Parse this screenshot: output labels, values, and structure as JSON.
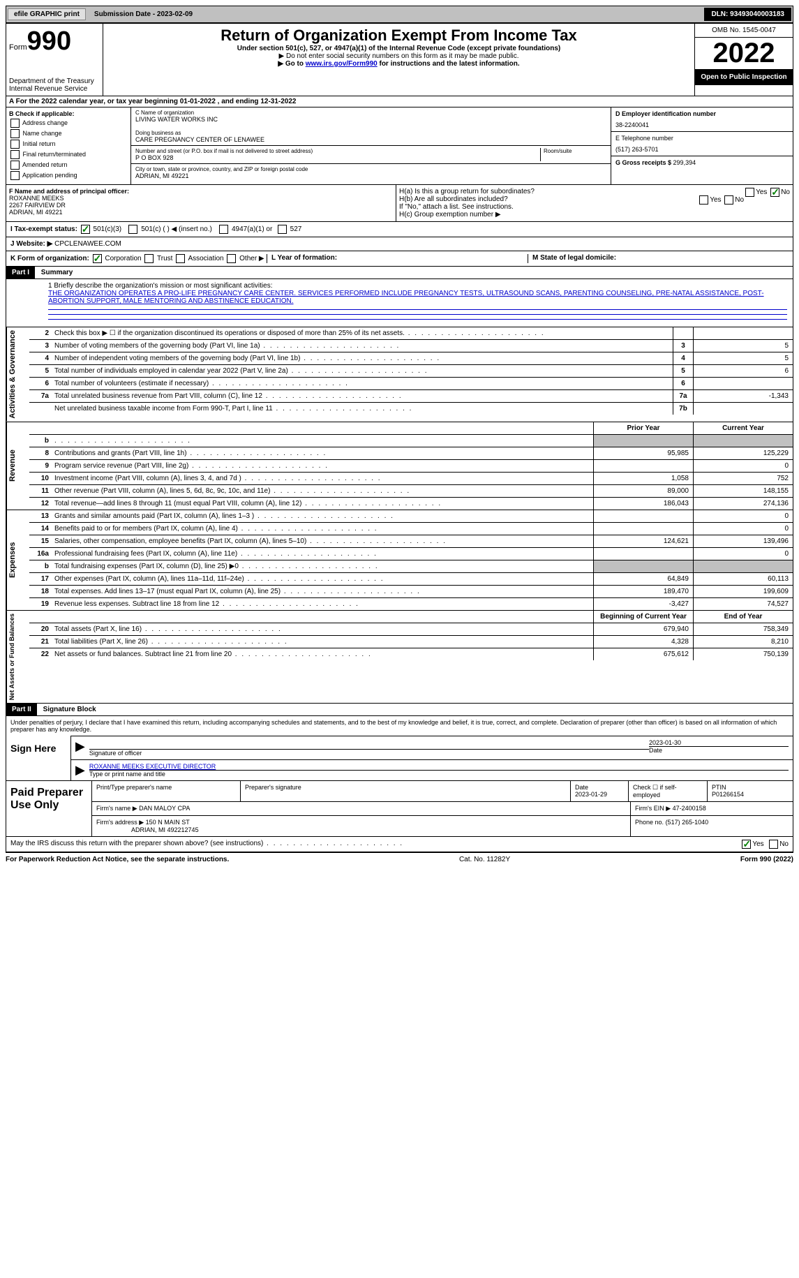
{
  "topbar": {
    "efile": "efile GRAPHIC print",
    "subdate_label": "Submission Date - ",
    "subdate": "2023-02-09",
    "dln": "DLN: 93493040003183"
  },
  "header": {
    "form_prefix": "Form",
    "form_num": "990",
    "dept": "Department of the Treasury",
    "irs": "Internal Revenue Service",
    "title": "Return of Organization Exempt From Income Tax",
    "subtitle": "Under section 501(c), 527, or 4947(a)(1) of the Internal Revenue Code (except private foundations)",
    "note1": "▶ Do not enter social security numbers on this form as it may be made public.",
    "note2_pre": "▶ Go to ",
    "note2_link": "www.irs.gov/Form990",
    "note2_post": " for instructions and the latest information.",
    "omb": "OMB No. 1545-0047",
    "year": "2022",
    "inspect": "Open to Public Inspection"
  },
  "sectionA": "A For the 2022 calendar year, or tax year beginning 01-01-2022    , and ending 12-31-2022",
  "colB": {
    "title": "B Check if applicable:",
    "items": [
      "Address change",
      "Name change",
      "Initial return",
      "Final return/terminated",
      "Amended return",
      "Application pending"
    ]
  },
  "colC": {
    "name_label": "C Name of organization",
    "name": "LIVING WATER WORKS INC",
    "dba_label": "Doing business as",
    "dba": "CARE PREGNANCY CENTER OF LENAWEE",
    "addr_label": "Number and street (or P.O. box if mail is not delivered to street address)",
    "room_label": "Room/suite",
    "addr": "P O BOX 928",
    "city_label": "City or town, state or province, country, and ZIP or foreign postal code",
    "city": "ADRIAN, MI  49221"
  },
  "colD": {
    "ein_label": "D Employer identification number",
    "ein": "38-2240041",
    "phone_label": "E Telephone number",
    "phone": "(517) 263-5701",
    "gross_label": "G Gross receipts $ ",
    "gross": "299,394"
  },
  "secF": {
    "label": "F Name and address of principal officer:",
    "name": "ROXANNE MEEKS",
    "addr1": "2267 FAIRVIEW DR",
    "addr2": "ADRIAN, MI  49221"
  },
  "secH": {
    "ha": "H(a) Is this a group return for subordinates?",
    "hb": "H(b) Are all subordinates included?",
    "hb_note": "If \"No,\" attach a list. See instructions.",
    "hc": "H(c) Group exemption number ▶",
    "yes": "Yes",
    "no": "No"
  },
  "taxStatus": {
    "label": "I    Tax-exempt status:",
    "opts": [
      "501(c)(3)",
      "501(c) (   ) ◀ (insert no.)",
      "4947(a)(1) or",
      "527"
    ]
  },
  "website": {
    "label": "J   Website: ▶",
    "val": "CPCLENAWEE.COM"
  },
  "kl": {
    "k": "K Form of organization:",
    "k_opts": [
      "Corporation",
      "Trust",
      "Association",
      "Other ▶"
    ],
    "l": "L Year of formation:",
    "m": "M State of legal domicile:"
  },
  "part1": {
    "hdr": "Part I",
    "title": "Summary"
  },
  "mission": {
    "label": "1  Briefly describe the organization's mission or most significant activities:",
    "text": "THE ORGANIZATION OPERATES A PRO-LIFE PREGNANCY CARE CENTER. SERVICES PERFORMED INCLUDE PREGNANCY TESTS, ULTRASOUND SCANS, PARENTING COUNSELING, PRE-NATAL ASSISTANCE, POST-ABORTION SUPPORT, MALE MENTORING AND ABSTINENCE EDUCATION."
  },
  "activities": {
    "tab": "Activities & Governance",
    "rows": [
      {
        "n": "2",
        "lbl": "Check this box ▶ ☐ if the organization discontinued its operations or disposed of more than 25% of its net assets.",
        "box": "",
        "v": ""
      },
      {
        "n": "3",
        "lbl": "Number of voting members of the governing body (Part VI, line 1a)",
        "box": "3",
        "v": "5"
      },
      {
        "n": "4",
        "lbl": "Number of independent voting members of the governing body (Part VI, line 1b)",
        "box": "4",
        "v": "5"
      },
      {
        "n": "5",
        "lbl": "Total number of individuals employed in calendar year 2022 (Part V, line 2a)",
        "box": "5",
        "v": "6"
      },
      {
        "n": "6",
        "lbl": "Total number of volunteers (estimate if necessary)",
        "box": "6",
        "v": ""
      },
      {
        "n": "7a",
        "lbl": "Total unrelated business revenue from Part VIII, column (C), line 12",
        "box": "7a",
        "v": "-1,343"
      },
      {
        "n": "",
        "lbl": "Net unrelated business taxable income from Form 990-T, Part I, line 11",
        "box": "7b",
        "v": ""
      }
    ]
  },
  "revenue": {
    "tab": "Revenue",
    "hdr_prior": "Prior Year",
    "hdr_curr": "Current Year",
    "rows": [
      {
        "n": "b",
        "lbl": "",
        "v1": "",
        "v2": "",
        "shade": true
      },
      {
        "n": "8",
        "lbl": "Contributions and grants (Part VIII, line 1h)",
        "v1": "95,985",
        "v2": "125,229"
      },
      {
        "n": "9",
        "lbl": "Program service revenue (Part VIII, line 2g)",
        "v1": "",
        "v2": "0"
      },
      {
        "n": "10",
        "lbl": "Investment income (Part VIII, column (A), lines 3, 4, and 7d )",
        "v1": "1,058",
        "v2": "752"
      },
      {
        "n": "11",
        "lbl": "Other revenue (Part VIII, column (A), lines 5, 6d, 8c, 9c, 10c, and 11e)",
        "v1": "89,000",
        "v2": "148,155"
      },
      {
        "n": "12",
        "lbl": "Total revenue—add lines 8 through 11 (must equal Part VIII, column (A), line 12)",
        "v1": "186,043",
        "v2": "274,136"
      }
    ]
  },
  "expenses": {
    "tab": "Expenses",
    "rows": [
      {
        "n": "13",
        "lbl": "Grants and similar amounts paid (Part IX, column (A), lines 1–3 )",
        "v1": "",
        "v2": "0"
      },
      {
        "n": "14",
        "lbl": "Benefits paid to or for members (Part IX, column (A), line 4)",
        "v1": "",
        "v2": "0"
      },
      {
        "n": "15",
        "lbl": "Salaries, other compensation, employee benefits (Part IX, column (A), lines 5–10)",
        "v1": "124,621",
        "v2": "139,496"
      },
      {
        "n": "16a",
        "lbl": "Professional fundraising fees (Part IX, column (A), line 11e)",
        "v1": "",
        "v2": "0"
      },
      {
        "n": "b",
        "lbl": "Total fundraising expenses (Part IX, column (D), line 25) ▶0",
        "v1": "",
        "v2": "",
        "shade": true
      },
      {
        "n": "17",
        "lbl": "Other expenses (Part IX, column (A), lines 11a–11d, 11f–24e)",
        "v1": "64,849",
        "v2": "60,113"
      },
      {
        "n": "18",
        "lbl": "Total expenses. Add lines 13–17 (must equal Part IX, column (A), line 25)",
        "v1": "189,470",
        "v2": "199,609"
      },
      {
        "n": "19",
        "lbl": "Revenue less expenses. Subtract line 18 from line 12",
        "v1": "-3,427",
        "v2": "74,527"
      }
    ]
  },
  "netassets": {
    "tab": "Net Assets or Fund Balances",
    "hdr_begin": "Beginning of Current Year",
    "hdr_end": "End of Year",
    "rows": [
      {
        "n": "20",
        "lbl": "Total assets (Part X, line 16)",
        "v1": "679,940",
        "v2": "758,349"
      },
      {
        "n": "21",
        "lbl": "Total liabilities (Part X, line 26)",
        "v1": "4,328",
        "v2": "8,210"
      },
      {
        "n": "22",
        "lbl": "Net assets or fund balances. Subtract line 21 from line 20",
        "v1": "675,612",
        "v2": "750,139"
      }
    ]
  },
  "part2": {
    "hdr": "Part II",
    "title": "Signature Block"
  },
  "penalties": "Under penalties of perjury, I declare that I have examined this return, including accompanying schedules and statements, and to the best of my knowledge and belief, it is true, correct, and complete. Declaration of preparer (other than officer) is based on all information of which preparer has any knowledge.",
  "sign": {
    "left": "Sign Here",
    "sig_label": "Signature of officer",
    "date_label": "Date",
    "date": "2023-01-30",
    "name": "ROXANNE MEEKS  EXECUTIVE DIRECTOR",
    "name_label": "Type or print name and title"
  },
  "paid": {
    "left": "Paid Preparer Use Only",
    "prep_name_label": "Print/Type preparer's name",
    "prep_sig_label": "Preparer's signature",
    "date_label": "Date",
    "date": "2023-01-29",
    "check_label": "Check ☐ if self-employed",
    "ptin_label": "PTIN",
    "ptin": "P01266154",
    "firm_name_label": "Firm's name    ▶",
    "firm_name": "DAN MALOY CPA",
    "firm_ein_label": "Firm's EIN ▶",
    "firm_ein": "47-2400158",
    "firm_addr_label": "Firm's address ▶",
    "firm_addr": "150 N MAIN ST",
    "firm_city": "ADRIAN, MI  492212745",
    "phone_label": "Phone no.",
    "phone": "(517) 265-1040"
  },
  "discuss": {
    "text": "May the IRS discuss this return with the preparer shown above? (see instructions)",
    "yes": "Yes",
    "no": "No"
  },
  "footer": {
    "left": "For Paperwork Reduction Act Notice, see the separate instructions.",
    "mid": "Cat. No. 11282Y",
    "right": "Form 990 (2022)"
  }
}
